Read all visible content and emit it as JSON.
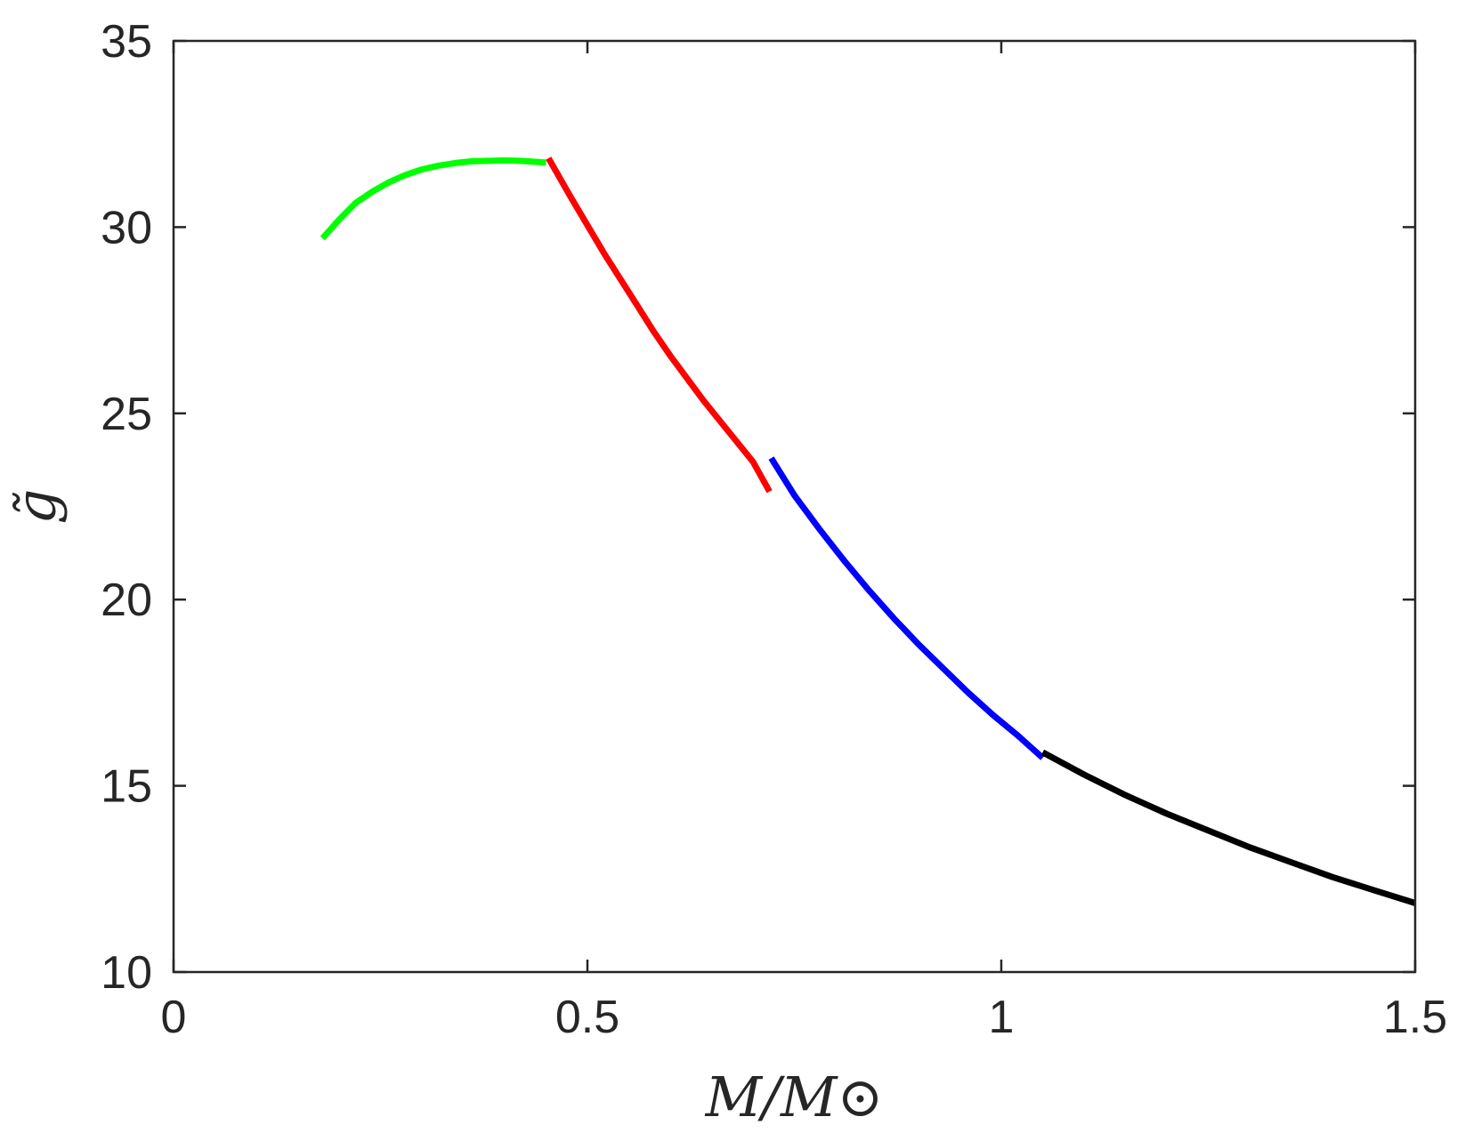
{
  "chart_data": {
    "type": "line",
    "xlabel": "M/M⊙",
    "ylabel": "g̃",
    "xlim": [
      0,
      1.5
    ],
    "ylim": [
      10,
      35
    ],
    "xticks": [
      0,
      0.5,
      1,
      1.5
    ],
    "xtick_labels": [
      "0",
      "0.5",
      "1",
      "1.5"
    ],
    "yticks": [
      10,
      15,
      20,
      25,
      30,
      35
    ],
    "ytick_labels": [
      "10",
      "15",
      "20",
      "25",
      "30",
      "35"
    ],
    "grid": false,
    "series": [
      {
        "color": "#00ff00",
        "x": [
          0.18,
          0.2,
          0.22,
          0.24,
          0.26,
          0.28,
          0.3,
          0.32,
          0.34,
          0.36,
          0.38,
          0.4,
          0.42,
          0.44,
          0.45
        ],
        "y": [
          29.7,
          30.2,
          30.65,
          30.95,
          31.2,
          31.4,
          31.55,
          31.65,
          31.72,
          31.77,
          31.78,
          31.79,
          31.78,
          31.75,
          31.73
        ]
      },
      {
        "color": "#ff0000",
        "x": [
          0.453,
          0.48,
          0.5,
          0.52,
          0.54,
          0.56,
          0.58,
          0.6,
          0.62,
          0.64,
          0.66,
          0.68,
          0.7,
          0.72
        ],
        "y": [
          31.85,
          30.8,
          30.05,
          29.3,
          28.6,
          27.9,
          27.2,
          26.55,
          25.95,
          25.35,
          24.8,
          24.25,
          23.7,
          22.9
        ]
      },
      {
        "color": "#0000ff",
        "x": [
          0.722,
          0.75,
          0.78,
          0.81,
          0.84,
          0.87,
          0.9,
          0.93,
          0.96,
          0.99,
          1.02,
          1.05
        ],
        "y": [
          23.8,
          22.8,
          21.9,
          21.05,
          20.25,
          19.5,
          18.8,
          18.15,
          17.5,
          16.9,
          16.35,
          15.75
        ]
      },
      {
        "color": "#000000",
        "x": [
          1.05,
          1.1,
          1.15,
          1.2,
          1.25,
          1.3,
          1.35,
          1.4,
          1.45,
          1.5
        ],
        "y": [
          15.9,
          15.3,
          14.75,
          14.25,
          13.8,
          13.35,
          12.95,
          12.55,
          12.2,
          11.85
        ]
      }
    ]
  }
}
